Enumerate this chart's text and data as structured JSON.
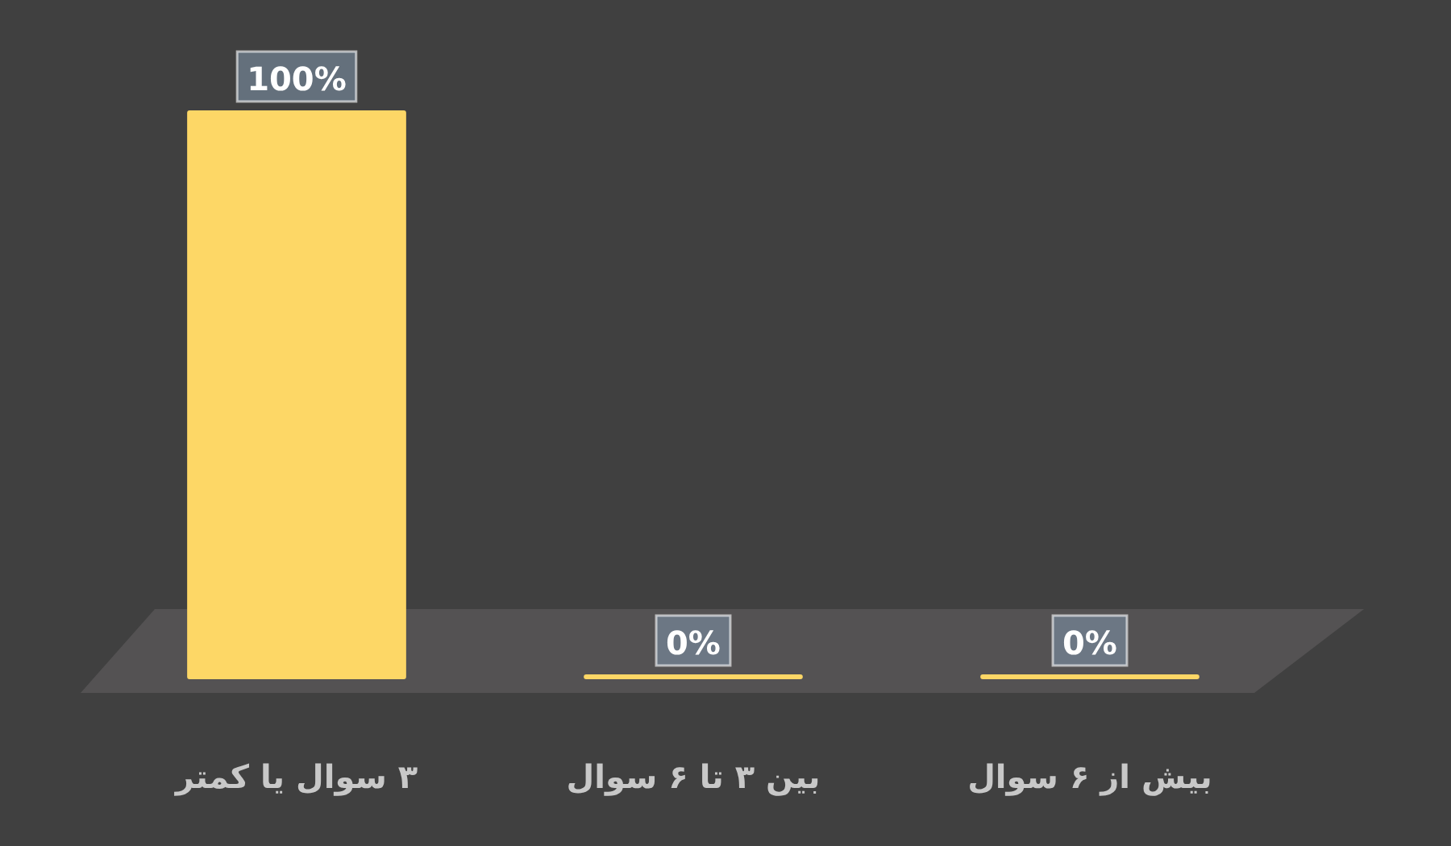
{
  "chart_data": {
    "type": "bar",
    "categories": [
      "۳ سوال یا کمتر",
      "بین ۳ تا ۶ سوال",
      "بیش از ۶ سوال"
    ],
    "values": [
      100,
      0,
      0
    ],
    "color": "#fdd766",
    "value_labels": [
      "100%",
      "0%",
      "0%"
    ]
  }
}
